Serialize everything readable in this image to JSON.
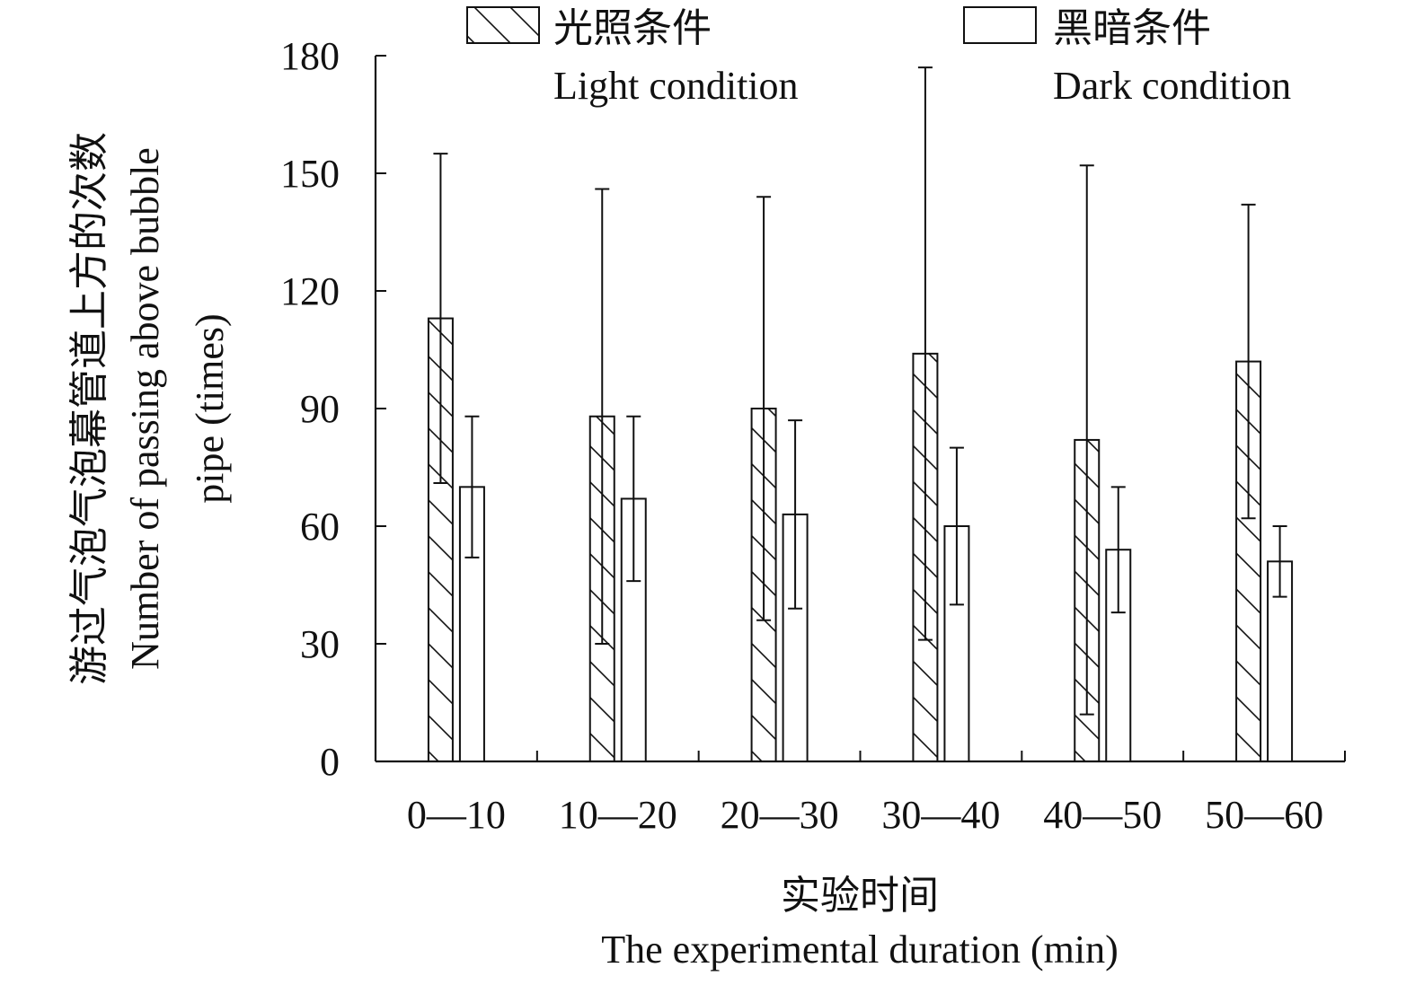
{
  "chart_data": {
    "type": "bar",
    "categories": [
      "0—10",
      "10—20",
      "20—30",
      "30—40",
      "40—50",
      "50—60"
    ],
    "series": [
      {
        "name_zh": "光照条件",
        "name_en": "Light condition",
        "values": [
          113,
          88,
          90,
          104,
          82,
          102
        ],
        "error": [
          42,
          58,
          54,
          73,
          70,
          40
        ],
        "pattern": "hatch"
      },
      {
        "name_zh": "黑暗条件",
        "name_en": "Dark condition",
        "values": [
          70,
          67,
          63,
          60,
          54,
          51
        ],
        "error": [
          18,
          21,
          24,
          20,
          16,
          9
        ],
        "pattern": "none"
      }
    ],
    "xlabel_zh": "实验时间",
    "xlabel_en": "The experimental duration (min)",
    "ylabel_zh": "游过气泡气泡幕管道上方的次数",
    "ylabel_en_line1": "Number of passing above bubble",
    "ylabel_en_line2": "pipe (times)",
    "ylim": [
      0,
      180
    ],
    "yticks": [
      0,
      30,
      60,
      90,
      120,
      150,
      180
    ],
    "grid": false,
    "legend_position": "top"
  }
}
